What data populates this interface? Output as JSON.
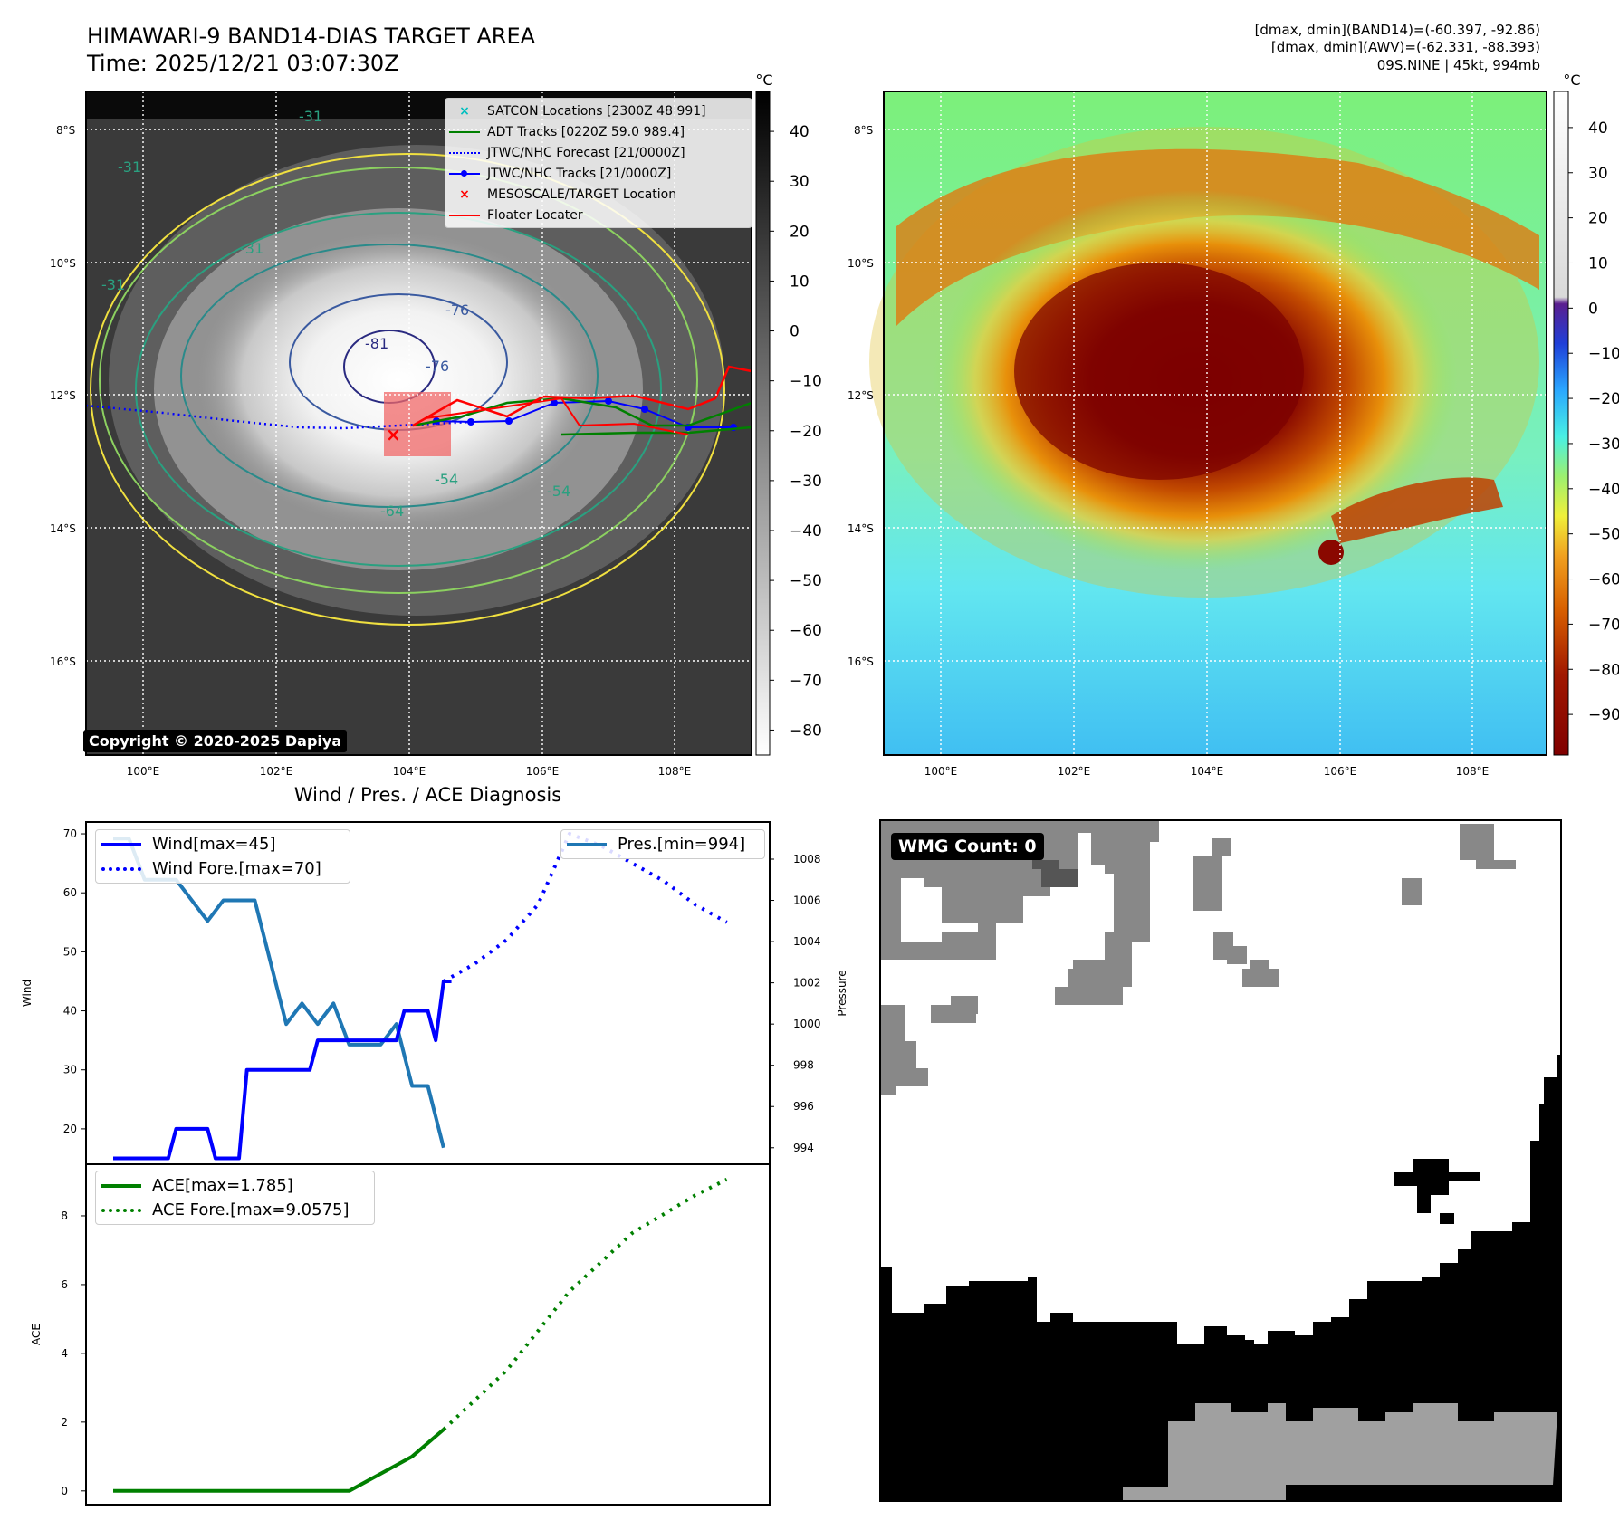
{
  "header": {
    "title_line1": "HIMAWARI-9 BAND14-DIAS TARGET AREA",
    "title_line2": "Time: 2025/12/21 03:07:30Z",
    "info_line1": "[dmax, dmin](BAND14)=(-60.397, -92.86)",
    "info_line2": "[dmax, dmin](AWV)=(-62.331, -88.393)",
    "info_line3": "09S.NINE | 45kt, 994mb"
  },
  "map": {
    "lon_ticks": [
      "100°E",
      "102°E",
      "104°E",
      "106°E",
      "108°E"
    ],
    "lat_ticks": [
      "8°S",
      "10°S",
      "12°S",
      "14°S",
      "16°S"
    ],
    "copyright": "Copyright © 2020-2025 Dapiya",
    "contour_labels": [
      "-31",
      "-31",
      "-31",
      "-31",
      "-54",
      "-54",
      "-64",
      "-76",
      "-76",
      "-81"
    ],
    "legend": [
      {
        "label": "SATCON Locations [2300Z 48 991]",
        "color": "#00bfbf",
        "marker": "x"
      },
      {
        "label": "ADT Tracks [0220Z 59.0 989.4]",
        "color": "#008000",
        "marker": "line"
      },
      {
        "label": "JTWC/NHC Forecast [21/0000Z]",
        "color": "#0000ff",
        "marker": "dotted"
      },
      {
        "label": "JTWC/NHC Tracks [21/0000Z]",
        "color": "#0000ff",
        "marker": "line-dot"
      },
      {
        "label": "MESOSCALE/TARGET Location",
        "color": "#ff0000",
        "marker": "x"
      },
      {
        "label": "Floater Locater",
        "color": "#ff0000",
        "marker": "line"
      }
    ]
  },
  "colorbar_gray": {
    "unit": "°C",
    "ticks": [
      "40",
      "30",
      "20",
      "10",
      "0",
      "−10",
      "−20",
      "−30",
      "−40",
      "−50",
      "−60",
      "−70",
      "−80"
    ],
    "range": [
      -85,
      48
    ]
  },
  "colorbar_color": {
    "unit": "°C",
    "ticks": [
      "40",
      "30",
      "20",
      "10",
      "0",
      "−10",
      "−20",
      "−30",
      "−40",
      "−50",
      "−60",
      "−70",
      "−80",
      "−90"
    ],
    "range": [
      -99,
      48
    ]
  },
  "chart_data": [
    {
      "type": "line",
      "title": "Wind / Pres. / ACE Diagnosis",
      "ylabel": "Wind",
      "y2label": "Pressure",
      "ylim": [
        14,
        72
      ],
      "y2lim": [
        993.2,
        1009.8
      ],
      "yticks": [
        "70",
        "60",
        "50",
        "40",
        "30",
        "20"
      ],
      "y2ticks": [
        "1008",
        "1006",
        "1004",
        "1002",
        "1000",
        "998",
        "996",
        "994"
      ],
      "series": [
        {
          "name": "Wind[max=45]",
          "color": "#0000ff",
          "style": "solid",
          "axis": "left",
          "x": [
            0,
            1,
            2,
            3,
            4,
            5,
            6,
            7,
            8,
            9,
            10,
            11,
            12,
            13,
            14,
            15,
            16,
            17,
            18,
            19,
            20,
            21,
            22,
            23,
            24,
            25,
            26,
            27,
            28,
            29,
            30,
            31,
            32,
            33,
            34,
            35,
            36,
            37,
            38,
            39,
            40,
            41,
            42,
            43
          ],
          "values": [
            15,
            15,
            15,
            15,
            15,
            15,
            15,
            15,
            20,
            20,
            20,
            20,
            20,
            15,
            15,
            15,
            15,
            30,
            30,
            30,
            30,
            30,
            30,
            30,
            30,
            30,
            35,
            35,
            35,
            35,
            35,
            35,
            35,
            35,
            35,
            35,
            35,
            40,
            40,
            40,
            40,
            35,
            45,
            45
          ]
        },
        {
          "name": "Pres.[min=994]",
          "color": "#1f77b4",
          "style": "solid",
          "axis": "right",
          "x": [
            0,
            2,
            4,
            6,
            8,
            10,
            12,
            14,
            16,
            18,
            20,
            22,
            24,
            26,
            28,
            30,
            32,
            34,
            36,
            38,
            40,
            42
          ],
          "values": [
            1009,
            1009,
            1007,
            1007,
            1007,
            1006,
            1005,
            1006,
            1006,
            1006,
            1003,
            1000,
            1001,
            1000,
            1001,
            999,
            999,
            999,
            1000,
            997,
            997,
            994
          ]
        }
      ],
      "wind_forecast": {
        "name": "Wind Fore.[max=70]",
        "color": "#0000ff",
        "style": "dotted",
        "x": [
          42,
          46,
          50,
          54,
          58,
          62,
          66,
          70,
          74,
          78
        ],
        "values": [
          45,
          48,
          52,
          58,
          70,
          68,
          65,
          62,
          58,
          55
        ]
      },
      "x_span": [
        0,
        80
      ]
    },
    {
      "type": "line",
      "ylabel": "ACE",
      "ylim": [
        -0.4,
        9.5
      ],
      "yticks": [
        "8",
        "6",
        "4",
        "2",
        "0"
      ],
      "series": [
        {
          "name": "ACE[max=1.785]",
          "color": "#008000",
          "style": "solid",
          "x": [
            0,
            10,
            20,
            30,
            34,
            38,
            42
          ],
          "values": [
            0,
            0,
            0,
            0,
            0.5,
            1.0,
            1.785
          ]
        },
        {
          "name": "ACE Fore.[max=9.0575]",
          "color": "#008000",
          "style": "dotted",
          "x": [
            42,
            50,
            58,
            66,
            74,
            78
          ],
          "values": [
            1.785,
            3.5,
            5.8,
            7.5,
            8.6,
            9.0575
          ]
        }
      ],
      "x_span": [
        0,
        80
      ]
    }
  ],
  "wmg": {
    "label": "WMG Count: 0"
  }
}
